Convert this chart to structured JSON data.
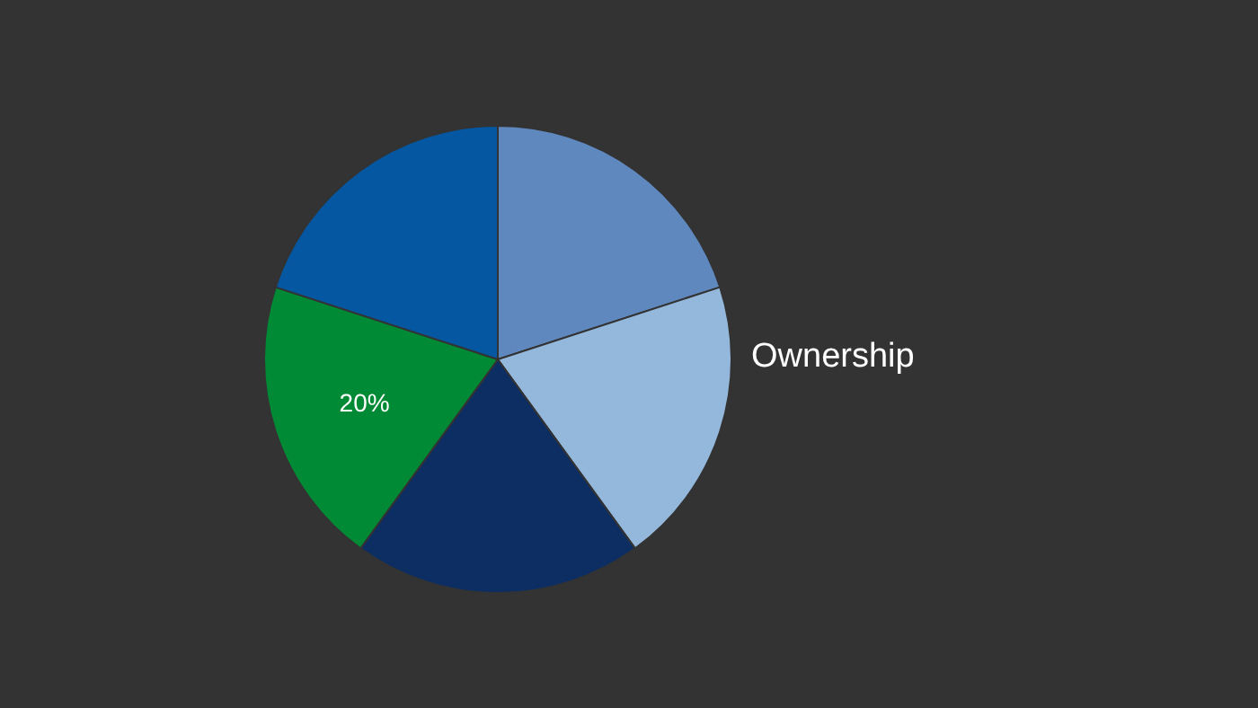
{
  "chart_data": {
    "type": "pie",
    "title": "Ownership",
    "categories": [
      null,
      null,
      null,
      null,
      null
    ],
    "values": [
      20,
      20,
      20,
      20,
      20
    ],
    "colors": [
      "#5f88bf",
      "#94b8dc",
      "#0c2e63",
      "#008a35",
      "#0457a0"
    ],
    "value_labels": [
      null,
      null,
      null,
      "20%",
      null
    ]
  }
}
